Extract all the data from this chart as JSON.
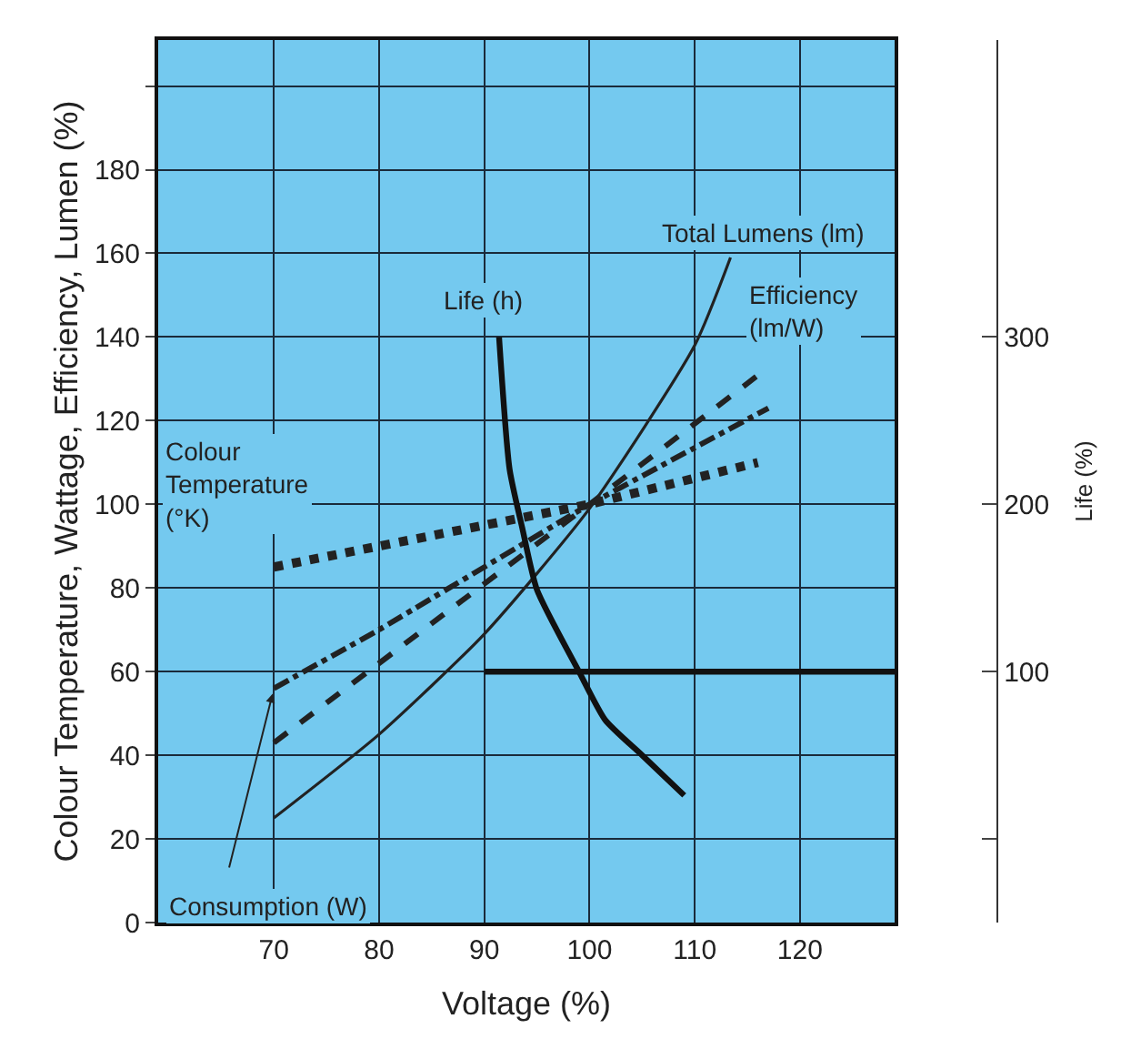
{
  "chart_data": {
    "type": "line",
    "xlabel": "Voltage (%)",
    "ylabel": "Colour Temperature, Wattage, Efficiency, Lumen (%)",
    "y2label": "Life (%)",
    "xlim": [
      59,
      129
    ],
    "xticks": [
      70,
      80,
      90,
      100,
      110,
      120
    ],
    "ylim": [
      0,
      211
    ],
    "yticks": [
      0,
      20,
      40,
      60,
      80,
      100,
      120,
      140,
      160,
      180,
      {
        "value": 200,
        "label": null
      }
    ],
    "y2lim": [
      -50,
      477.5
    ],
    "y2ticks": [
      {
        "value": 0,
        "label": null
      },
      100,
      200,
      300
    ],
    "grid": true,
    "legend": false,
    "marker": "none",
    "series": [
      {
        "name": "Total Lumens (lm)",
        "color": "#222222",
        "line_style": "solid",
        "x": [
          70,
          80,
          90,
          100,
          110,
          113.4
        ],
        "values": [
          25,
          45,
          69,
          99,
          138,
          159
        ]
      },
      {
        "name": "Efficiency (lm/W)",
        "color": "#222222",
        "line_style": "dashed",
        "x": [
          70,
          100,
          116.6
        ],
        "values": [
          43,
          100,
          132
        ]
      },
      {
        "name": "Consumption (W)",
        "color": "#222222",
        "line_style": "dashdot",
        "x": [
          70,
          80,
          100,
          117
        ],
        "values": [
          56,
          70,
          100,
          123
        ]
      },
      {
        "name": "Colour Temperature (°K)",
        "color": "#222222",
        "line_style": "dotted",
        "x": [
          70,
          100,
          116
        ],
        "values": [
          85,
          100,
          110
        ]
      },
      {
        "name": "Life (h)",
        "color": "#111111",
        "line_style": "solid",
        "axis": "y2",
        "x": [
          91.4,
          92.4,
          93.6,
          95,
          99,
          101.5,
          105,
          109
        ],
        "values": [
          300,
          221,
          186,
          149,
          100,
          71,
          50,
          26
        ]
      },
      {
        "color": "#111111",
        "line_style": "solid",
        "axis": "y2",
        "x": [
          90,
          129
        ],
        "values": [
          100,
          100
        ]
      }
    ]
  }
}
